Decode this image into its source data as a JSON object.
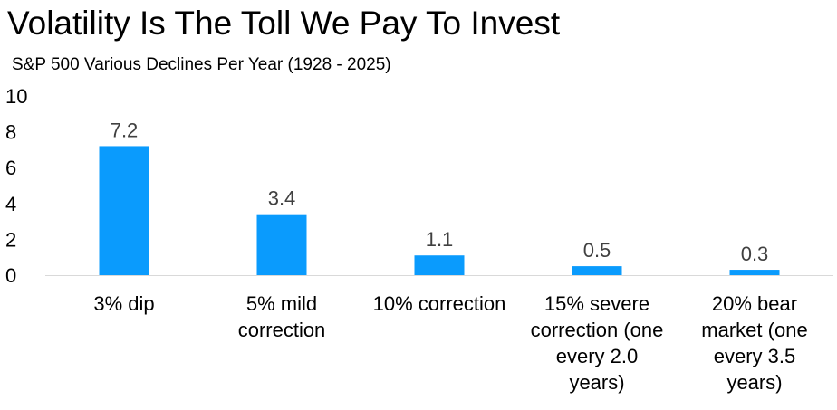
{
  "header": {
    "title": "Volatility Is The Toll We Pay To Invest",
    "subtitle": "S&P 500 Various Declines Per Year (1928 - 2025)"
  },
  "colors": {
    "bar": "#0A9BFD",
    "axis": "#D9D9D9",
    "label": "#404040"
  },
  "chart_data": {
    "type": "bar",
    "title": "Volatility Is The Toll We Pay To Invest",
    "subtitle": "S&P 500 Various Declines Per Year (1928 - 2025)",
    "xlabel": "",
    "ylabel": "",
    "ylim": [
      0,
      10
    ],
    "yticks": [
      "0",
      "2",
      "4",
      "6",
      "8",
      "10"
    ],
    "grid": false,
    "legend": "none",
    "categories": [
      "3% dip",
      "5% mild correction",
      "10% correction",
      "15% severe correction (one every 2.0 years)",
      "20% bear market (one every 3.5 years)"
    ],
    "category_lines": [
      [
        "3% dip"
      ],
      [
        "5% mild",
        "correction"
      ],
      [
        "10% correction"
      ],
      [
        "15% severe",
        "correction (one",
        "every 2.0",
        "years)"
      ],
      [
        "20% bear",
        "market (one",
        "every 3.5",
        "years)"
      ]
    ],
    "values": [
      7.2,
      3.4,
      1.1,
      0.5,
      0.3
    ],
    "data_labels": [
      "7.2",
      "3.4",
      "1.1",
      "0.5",
      "0.3"
    ]
  }
}
